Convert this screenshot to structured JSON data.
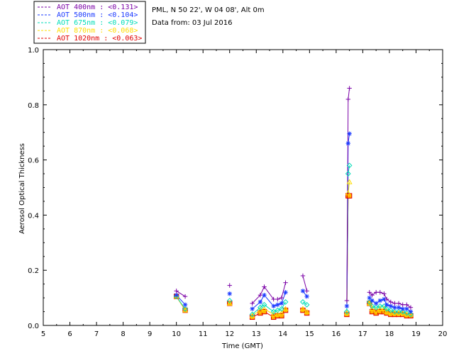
{
  "header": {
    "site_line": "PML, N 50 22', W 04 08', Alt 0m",
    "date_line": "Data from: 03 Jul 2016"
  },
  "legend": [
    {
      "text": "AOT  400nm : <0.131>",
      "color": "#7a00a6",
      "icon": "plus-marker"
    },
    {
      "text": "AOT  500nm : <0.104>",
      "color": "#1a39ff",
      "icon": "asterisk-marker"
    },
    {
      "text": "AOT  675nm : <0.079>",
      "color": "#00ddb8",
      "icon": "diamond-marker"
    },
    {
      "text": "AOT  870nm : <0.068>",
      "color": "#ffdd00",
      "icon": "triangle-marker"
    },
    {
      "text": "AOT 1020nm : <0.063>",
      "color": "#e00000",
      "icon": "square-marker"
    }
  ],
  "chart_data": {
    "type": "line",
    "xlabel": "Time (GMT)",
    "ylabel": "Aerosol Optical Thickness",
    "xlim": [
      5,
      20
    ],
    "ylim": [
      0,
      1.0
    ],
    "xticks": [
      5,
      6,
      7,
      8,
      9,
      10,
      11,
      12,
      13,
      14,
      15,
      16,
      17,
      18,
      19,
      20
    ],
    "yticks": [
      0.0,
      0.2,
      0.4,
      0.6,
      0.8,
      1.0
    ],
    "ytick_labels": [
      "0.0",
      "0.2",
      "0.4",
      "0.6",
      "0.8",
      "1.0"
    ],
    "grid": false,
    "x": [
      10.0,
      10.33,
      12.0,
      12.85,
      13.15,
      13.3,
      13.65,
      13.8,
      13.95,
      14.1,
      14.75,
      14.9,
      16.4,
      16.45,
      16.5,
      17.25,
      17.35,
      17.5,
      17.65,
      17.8,
      17.9,
      18.05,
      18.2,
      18.35,
      18.5,
      18.65,
      18.8
    ],
    "series": [
      {
        "name": "AOT  400nm : <0.131>",
        "marker": "plus",
        "color": "#7a00a6",
        "values": [
          0.125,
          0.105,
          0.145,
          0.08,
          0.11,
          0.14,
          0.095,
          0.095,
          0.1,
          0.155,
          0.18,
          0.125,
          0.09,
          0.82,
          0.86,
          0.12,
          0.11,
          0.12,
          0.12,
          0.115,
          0.095,
          0.085,
          0.08,
          0.08,
          0.075,
          0.075,
          0.065
        ]
      },
      {
        "name": "AOT  500nm : <0.104>",
        "marker": "asterisk",
        "color": "#1a39ff",
        "values": [
          0.11,
          0.075,
          0.115,
          0.06,
          0.085,
          0.11,
          0.07,
          0.075,
          0.08,
          0.12,
          0.125,
          0.105,
          0.07,
          0.66,
          0.695,
          0.1,
          0.09,
          0.08,
          0.09,
          0.095,
          0.075,
          0.07,
          0.065,
          0.065,
          0.06,
          0.06,
          0.05
        ]
      },
      {
        "name": "AOT  675nm : <0.079>",
        "marker": "diamond",
        "color": "#00ddb8",
        "values": [
          0.105,
          0.06,
          0.09,
          0.04,
          0.065,
          0.075,
          0.05,
          0.055,
          0.06,
          0.085,
          0.085,
          0.075,
          0.05,
          0.55,
          0.58,
          0.085,
          0.07,
          0.065,
          0.07,
          0.07,
          0.06,
          0.055,
          0.05,
          0.05,
          0.05,
          0.045,
          0.04
        ]
      },
      {
        "name": "AOT  870nm : <0.068>",
        "marker": "triangle",
        "color": "#ffdd00",
        "values": [
          0.105,
          0.055,
          0.08,
          0.035,
          0.055,
          0.06,
          0.04,
          0.04,
          0.045,
          0.06,
          0.06,
          0.05,
          0.045,
          0.48,
          0.52,
          0.08,
          0.06,
          0.055,
          0.06,
          0.06,
          0.05,
          0.045,
          0.045,
          0.045,
          0.045,
          0.04,
          0.04
        ]
      },
      {
        "name": "AOT 1020nm : <0.063>",
        "marker": "square",
        "color": "#e00000",
        "values": [
          0.105,
          0.055,
          0.08,
          0.03,
          0.045,
          0.05,
          0.03,
          0.035,
          0.035,
          0.055,
          0.055,
          0.045,
          0.04,
          0.47,
          0.47,
          0.08,
          0.05,
          0.045,
          0.05,
          0.05,
          0.045,
          0.04,
          0.04,
          0.04,
          0.04,
          0.035,
          0.035
        ]
      }
    ]
  }
}
